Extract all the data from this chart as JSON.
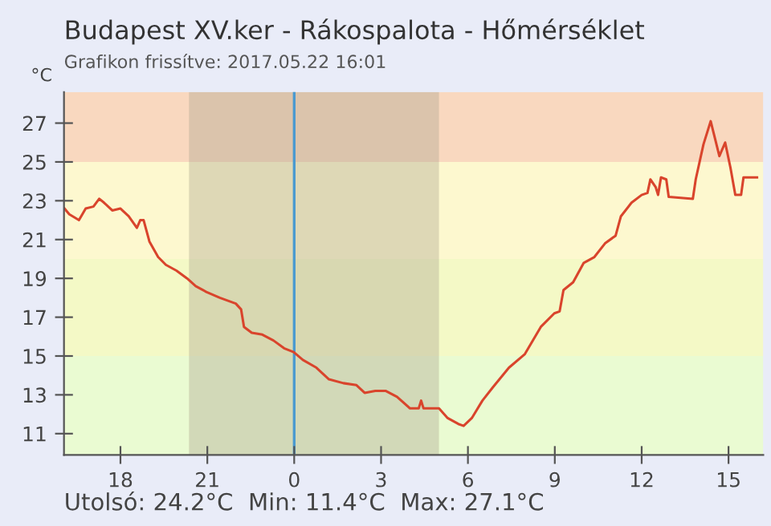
{
  "chart_data": {
    "type": "line",
    "title": "Budapest XV.ker - Rákospalota - Hőmérséklet",
    "subtitle": "Grafikon frissítve: 2017.05.22 16:01",
    "ylabel": "°C",
    "annotations": [
      "Utolsó: 24.2°C  Min: 11.4°C  Max: 27.1°C"
    ],
    "x": [
      "2017-05-21T16:04",
      "2017-05-21T16:14",
      "2017-05-21T16:34",
      "2017-05-21T16:48",
      "2017-05-21T17:04",
      "2017-05-21T17:16",
      "2017-05-21T17:26",
      "2017-05-21T17:43",
      "2017-05-21T18:00",
      "2017-05-21T18:17",
      "2017-05-21T18:34",
      "2017-05-21T18:41",
      "2017-05-21T18:48",
      "2017-05-21T19:00",
      "2017-05-21T19:18",
      "2017-05-21T19:34",
      "2017-05-21T19:56",
      "2017-05-21T20:18",
      "2017-05-21T20:36",
      "2017-05-21T20:58",
      "2017-05-21T21:26",
      "2017-05-21T21:59",
      "2017-05-21T22:10",
      "2017-05-21T22:16",
      "2017-05-21T22:32",
      "2017-05-21T22:54",
      "2017-05-21T23:17",
      "2017-05-21T23:39",
      "2017-05-21T23:59",
      "2017-05-22T00:18",
      "2017-05-22T00:46",
      "2017-05-22T01:12",
      "2017-05-22T01:42",
      "2017-05-22T02:09",
      "2017-05-22T02:26",
      "2017-05-22T02:48",
      "2017-05-22T03:10",
      "2017-05-22T03:33",
      "2017-05-22T04:00",
      "2017-05-22T04:18",
      "2017-05-22T04:23",
      "2017-05-22T04:28",
      "2017-05-22T05:00",
      "2017-05-22T05:18",
      "2017-05-22T05:40",
      "2017-05-22T05:51",
      "2017-05-22T06:08",
      "2017-05-22T06:30",
      "2017-05-22T06:52",
      "2017-05-22T07:25",
      "2017-05-22T07:58",
      "2017-05-22T08:31",
      "2017-05-22T08:59",
      "2017-05-22T09:10",
      "2017-05-22T09:18",
      "2017-05-22T09:38",
      "2017-05-22T10:00",
      "2017-05-22T10:22",
      "2017-05-22T10:44",
      "2017-05-22T11:06",
      "2017-05-22T11:17",
      "2017-05-22T11:39",
      "2017-05-22T12:00",
      "2017-05-22T12:12",
      "2017-05-22T12:18",
      "2017-05-22T12:29",
      "2017-05-22T12:34",
      "2017-05-22T12:40",
      "2017-05-22T12:51",
      "2017-05-22T12:56",
      "2017-05-22T13:46",
      "2017-05-22T13:52",
      "2017-05-22T14:08",
      "2017-05-22T14:23",
      "2017-05-22T14:41",
      "2017-05-22T14:53",
      "2017-05-22T15:04",
      "2017-05-22T15:14",
      "2017-05-22T15:26",
      "2017-05-22T15:31",
      "2017-05-22T15:59"
    ],
    "series": [
      {
        "color": "#d9442c",
        "values": [
          22.6,
          22.3,
          22.0,
          22.6,
          22.7,
          23.1,
          22.9,
          22.5,
          22.6,
          22.2,
          21.6,
          22.0,
          22.0,
          20.9,
          20.1,
          19.7,
          19.4,
          19.0,
          18.6,
          18.3,
          18.0,
          17.7,
          17.4,
          16.5,
          16.2,
          16.1,
          15.8,
          15.4,
          15.2,
          14.8,
          14.4,
          13.8,
          13.6,
          13.5,
          13.1,
          13.2,
          13.2,
          12.9,
          12.3,
          12.3,
          12.7,
          12.3,
          12.3,
          11.8,
          11.5,
          11.4,
          11.8,
          12.7,
          13.4,
          14.4,
          15.1,
          16.5,
          17.2,
          17.3,
          18.4,
          18.8,
          19.8,
          20.1,
          20.8,
          21.2,
          22.2,
          22.9,
          23.3,
          23.4,
          24.1,
          23.7,
          23.3,
          24.2,
          24.1,
          23.2,
          23.1,
          24.1,
          25.9,
          27.1,
          25.3,
          26.0,
          24.7,
          23.3,
          23.3,
          24.2,
          24.2
        ]
      }
    ],
    "xlim": [
      "2017-05-21T16:03",
      "2017-05-22T16:12"
    ],
    "ylim": [
      9.9,
      28.6
    ],
    "xticks": [
      {
        "value": "2017-05-21T18:00",
        "label": "18"
      },
      {
        "value": "2017-05-21T21:00",
        "label": "21"
      },
      {
        "value": "2017-05-22T00:00",
        "label": "0"
      },
      {
        "value": "2017-05-22T03:00",
        "label": "3"
      },
      {
        "value": "2017-05-22T06:00",
        "label": "6"
      },
      {
        "value": "2017-05-22T09:00",
        "label": "9"
      },
      {
        "value": "2017-05-22T12:00",
        "label": "12"
      },
      {
        "value": "2017-05-22T15:00",
        "label": "15"
      }
    ],
    "yticks": [
      11,
      13,
      15,
      17,
      19,
      21,
      23,
      25,
      27
    ],
    "bands": [
      {
        "axis": "y",
        "from": 25,
        "to": 28.6,
        "color": "#f9d8bf"
      },
      {
        "axis": "y",
        "from": 20,
        "to": 25,
        "color": "#fdf8cf"
      },
      {
        "axis": "y",
        "from": 15,
        "to": 20,
        "color": "#f4f9c6"
      },
      {
        "axis": "y",
        "from": 9.9,
        "to": 15,
        "color": "#eafbd2"
      },
      {
        "axis": "x",
        "from": "2017-05-21T20:22",
        "to": "2017-05-22T05:00",
        "color": "#b0a890"
      }
    ],
    "ref_lines": [
      {
        "axis": "x",
        "value": "2017-05-22T00:00",
        "color": "#4a9ad0"
      }
    ],
    "grid": false,
    "legend": false,
    "marker": "none",
    "line_style": "solid"
  }
}
